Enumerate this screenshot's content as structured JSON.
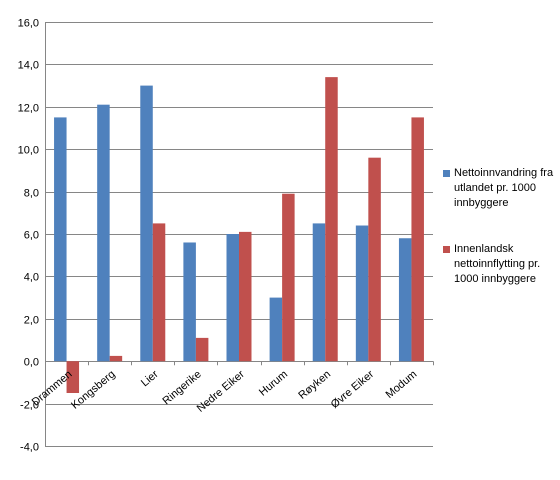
{
  "chart_data": {
    "type": "bar",
    "title": "",
    "xlabel": "",
    "ylabel": "",
    "ylim": [
      -4,
      16
    ],
    "yticks": [
      "-4,0",
      "-2,0",
      "0,0",
      "2,0",
      "4,0",
      "6,0",
      "8,0",
      "10,0",
      "12,0",
      "14,0",
      "16,0"
    ],
    "grid": true,
    "legend_position": "right",
    "categories": [
      "Drammen",
      "Kongsberg",
      "Lier",
      "Ringerike",
      "Nedre Eiker",
      "Hurum",
      "Røyken",
      "Øvre Eiker",
      "Modum"
    ],
    "series": [
      {
        "name": "Nettoinnvandring fra utlandet pr. 1000 innbyggere",
        "color": "#4f81bd",
        "values": [
          11.5,
          12.1,
          13.0,
          5.6,
          6.0,
          3.0,
          6.5,
          6.4,
          5.8
        ]
      },
      {
        "name": "Innenlandsk nettoinnflytting pr. 1000 innbyggere",
        "color": "#c0504d",
        "values": [
          -1.5,
          0.25,
          6.5,
          1.1,
          6.1,
          7.9,
          13.4,
          9.6,
          11.5
        ]
      }
    ]
  }
}
